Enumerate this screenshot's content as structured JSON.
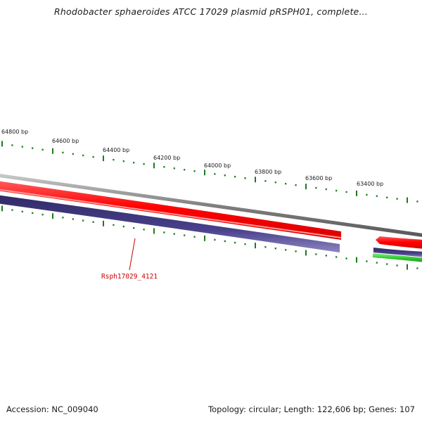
{
  "title": "Rhodobacter sphaeroides ATCC 17029 plasmid pRSPH01, complete...",
  "footer": {
    "accession": "Accession: NC_009040",
    "summary": "Topology: circular; Length: 122,606 bp; Genes: 107"
  },
  "ruler": {
    "labels": [
      "64800 bp",
      "64600 bp",
      "64400 bp",
      "64200 bp",
      "64000 bp",
      "63800 bp",
      "63600 bp",
      "63400 bp"
    ]
  },
  "genes": {
    "label": "Rsph17029_4121"
  },
  "colors": {
    "backbone": "#808080",
    "forward_gene": "#ff0000",
    "reverse_gene": "#4a4080",
    "rna_gene": "#33cc33",
    "tick": "#1e7a1e",
    "gene_label": "#cc0000"
  }
}
